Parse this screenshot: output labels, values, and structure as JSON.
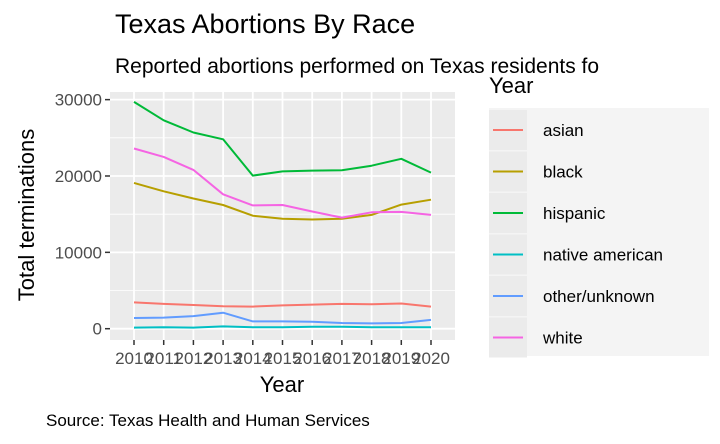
{
  "chart_data": {
    "type": "line",
    "title": "Texas Abortions By Race",
    "subtitle": "Reported abortions performed on Texas residents fo",
    "xlabel": "Year",
    "ylabel": "Total terminations",
    "caption": "Source: Texas Health and Human Services",
    "legend_title": "Year",
    "legend_position": "right",
    "grid": true,
    "x": [
      2010,
      2011,
      2012,
      2013,
      2014,
      2015,
      2016,
      2017,
      2018,
      2019,
      2020
    ],
    "xlim": [
      2010,
      2020
    ],
    "ylim": [
      -1480,
      31000
    ],
    "y_ticks": [
      0,
      10000,
      20000,
      30000
    ],
    "y_tick_labels": [
      "0",
      "10000",
      "20000",
      "30000"
    ],
    "x_tick_labels": [
      "2010",
      "2011",
      "2012",
      "2013",
      "2014",
      "2015",
      "2016",
      "2017",
      "2018",
      "2019",
      "2020"
    ],
    "series": [
      {
        "name": "asian",
        "color": "#F8766D",
        "values": [
          3450,
          3250,
          3100,
          2950,
          2900,
          3050,
          3150,
          3250,
          3200,
          3300,
          2900
        ]
      },
      {
        "name": "black",
        "color": "#B79F00",
        "values": [
          19100,
          18000,
          17050,
          16200,
          14800,
          14400,
          14300,
          14400,
          14900,
          16250,
          16900
        ]
      },
      {
        "name": "hispanic",
        "color": "#00BA38",
        "values": [
          29700,
          27300,
          25700,
          24800,
          20050,
          20600,
          20700,
          20750,
          21350,
          22250,
          20450
        ]
      },
      {
        "name": "native american",
        "color": "#00BFC4",
        "values": [
          150,
          200,
          150,
          300,
          200,
          200,
          250,
          250,
          200,
          200,
          200
        ]
      },
      {
        "name": "other/unknown",
        "color": "#619CFF",
        "values": [
          1400,
          1450,
          1650,
          2100,
          950,
          950,
          900,
          750,
          700,
          750,
          1150
        ]
      },
      {
        "name": "white",
        "color": "#F564E3",
        "values": [
          23600,
          22500,
          20800,
          17600,
          16150,
          16200,
          15350,
          14550,
          15250,
          15300,
          14900
        ]
      }
    ]
  }
}
